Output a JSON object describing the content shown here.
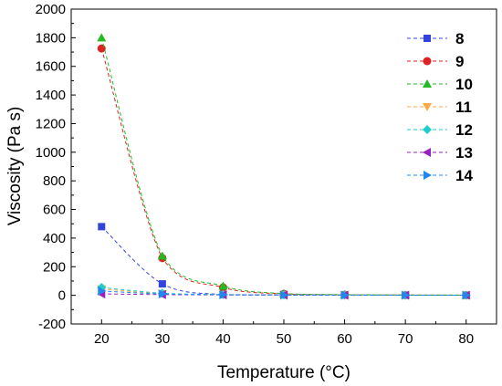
{
  "chart_data": {
    "type": "line",
    "title": "",
    "xlabel": "Temperature (°C)",
    "ylabel": "Viscosity (Pa s)",
    "xlim": [
      15,
      85
    ],
    "ylim": [
      -200,
      2000
    ],
    "xticks": [
      20,
      30,
      40,
      50,
      60,
      70,
      80
    ],
    "yticks": [
      -200,
      0,
      200,
      400,
      600,
      800,
      1000,
      1200,
      1400,
      1600,
      1800,
      2000
    ],
    "grid": false,
    "legend_position": "top-right",
    "x": [
      20,
      30,
      40,
      50,
      60,
      70,
      80
    ],
    "series": [
      {
        "name": "8",
        "color": "#3344dd",
        "marker": "square",
        "values": [
          480,
          80,
          5,
          3,
          2,
          1,
          1
        ]
      },
      {
        "name": "9",
        "color": "#dd2222",
        "marker": "circle",
        "values": [
          1725,
          260,
          55,
          10,
          4,
          2,
          1
        ]
      },
      {
        "name": "10",
        "color": "#22bb22",
        "marker": "triangle-up",
        "values": [
          1800,
          275,
          65,
          12,
          5,
          3,
          2
        ]
      },
      {
        "name": "11",
        "color": "#ffaa44",
        "marker": "triangle-down",
        "values": [
          45,
          12,
          5,
          3,
          2,
          1,
          1
        ]
      },
      {
        "name": "12",
        "color": "#22cccc",
        "marker": "diamond",
        "values": [
          55,
          15,
          6,
          3,
          2,
          1,
          1
        ]
      },
      {
        "name": "13",
        "color": "#9922bb",
        "marker": "triangle-left",
        "values": [
          10,
          5,
          3,
          2,
          1,
          1,
          1
        ]
      },
      {
        "name": "14",
        "color": "#2288ee",
        "marker": "triangle-right",
        "values": [
          30,
          10,
          4,
          2,
          1,
          1,
          1
        ]
      }
    ]
  }
}
